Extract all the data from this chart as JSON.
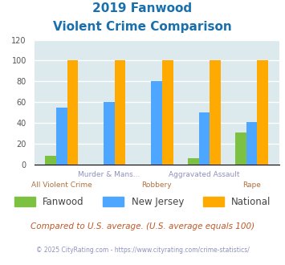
{
  "title_line1": "2019 Fanwood",
  "title_line2": "Violent Crime Comparison",
  "categories": [
    "All Violent Crime",
    "Murder & Mans...",
    "Robbery",
    "Aggravated Assault",
    "Rape"
  ],
  "categories_row1": [
    "All Violent Crime",
    "",
    "Robbery",
    "",
    "Rape"
  ],
  "categories_row2": [
    "",
    "Murder & Mans...",
    "",
    "Aggravated Assault",
    ""
  ],
  "fanwood": [
    8,
    0,
    0,
    6,
    31
  ],
  "new_jersey": [
    55,
    60,
    80,
    50,
    41
  ],
  "national": [
    100,
    100,
    100,
    100,
    100
  ],
  "colors": {
    "fanwood": "#7dc142",
    "new_jersey": "#4da6ff",
    "national": "#ffaa00"
  },
  "ylim": [
    0,
    120
  ],
  "yticks": [
    0,
    20,
    40,
    60,
    80,
    100,
    120
  ],
  "bg_color": "#dce9ed",
  "grid_color": "#ffffff",
  "title_color": "#1a6fad",
  "xlabel_color_row1": "#b07040",
  "xlabel_color_row2": "#9090c0",
  "legend_label_color": "#444444",
  "footer_text": "Compared to U.S. average. (U.S. average equals 100)",
  "copyright_text": "© 2025 CityRating.com - https://www.cityrating.com/crime-statistics/",
  "footer_color": "#c05828",
  "copyright_color": "#9090c0"
}
